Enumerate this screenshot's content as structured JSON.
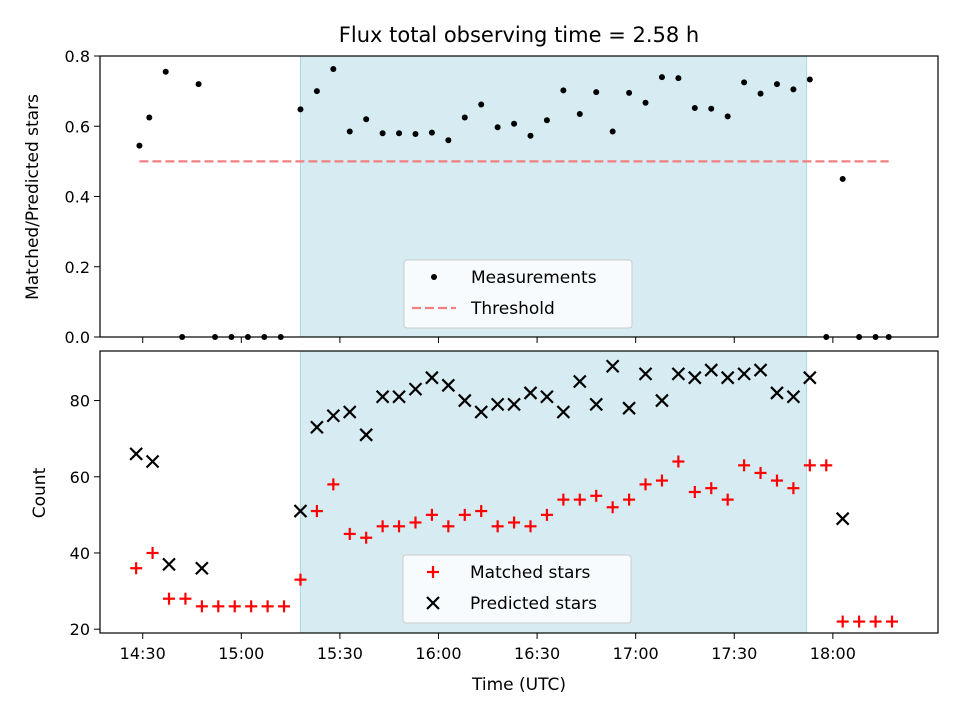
{
  "title": "Flux total observing time = 2.58 h",
  "colors": {
    "highlight": "#add8e6",
    "threshold": "#f08080",
    "measurements": "#000000",
    "matched": "#ff0000",
    "predicted": "#000000"
  },
  "chart_data": [
    {
      "type": "scatter",
      "title": "Flux total observing time = 2.58 h",
      "xlabel": "",
      "ylabel": "Matched/Predicted stars",
      "xlim": [
        "14:17",
        "18:32"
      ],
      "ylim": [
        0,
        0.8
      ],
      "y_ticks": [
        "0.0",
        "0.2",
        "0.4",
        "0.6",
        "0.8"
      ],
      "highlight_x": [
        "15:18",
        "17:52"
      ],
      "legend": {
        "position": "lower-center",
        "entries": [
          "Measurements",
          "Threshold"
        ]
      },
      "threshold": {
        "name": "Threshold",
        "value": 0.5,
        "x_range": [
          "14:29",
          "18:17"
        ]
      },
      "series": [
        {
          "name": "Measurements",
          "marker": "dot",
          "points": [
            [
              "14:29",
              0.545
            ],
            [
              "14:32",
              0.625
            ],
            [
              "14:37",
              0.755
            ],
            [
              "14:42",
              0.0
            ],
            [
              "14:47",
              0.72
            ],
            [
              "14:52",
              0.0
            ],
            [
              "14:57",
              0.0
            ],
            [
              "15:02",
              0.0
            ],
            [
              "15:07",
              0.0
            ],
            [
              "15:12",
              0.0
            ],
            [
              "15:18",
              0.648
            ],
            [
              "15:23",
              0.7
            ],
            [
              "15:28",
              0.763
            ],
            [
              "15:33",
              0.585
            ],
            [
              "15:38",
              0.62
            ],
            [
              "15:43",
              0.58
            ],
            [
              "15:48",
              0.58
            ],
            [
              "15:53",
              0.578
            ],
            [
              "15:58",
              0.582
            ],
            [
              "16:03",
              0.56
            ],
            [
              "16:08",
              0.625
            ],
            [
              "16:13",
              0.662
            ],
            [
              "16:18",
              0.597
            ],
            [
              "16:23",
              0.607
            ],
            [
              "16:28",
              0.573
            ],
            [
              "16:33",
              0.617
            ],
            [
              "16:38",
              0.702
            ],
            [
              "16:43",
              0.635
            ],
            [
              "16:48",
              0.697
            ],
            [
              "16:53",
              0.585
            ],
            [
              "16:58",
              0.695
            ],
            [
              "17:03",
              0.667
            ],
            [
              "17:08",
              0.74
            ],
            [
              "17:13",
              0.737
            ],
            [
              "17:18",
              0.652
            ],
            [
              "17:23",
              0.65
            ],
            [
              "17:28",
              0.628
            ],
            [
              "17:33",
              0.725
            ],
            [
              "17:38",
              0.693
            ],
            [
              "17:43",
              0.72
            ],
            [
              "17:48",
              0.705
            ],
            [
              "17:53",
              0.733
            ],
            [
              "17:58",
              0.0
            ],
            [
              "18:03",
              0.45
            ],
            [
              "18:08",
              0.0
            ],
            [
              "18:13",
              0.0
            ],
            [
              "18:17",
              0.0
            ]
          ]
        }
      ]
    },
    {
      "type": "scatter",
      "title": "",
      "xlabel": "Time (UTC)",
      "ylabel": "Count",
      "xlim": [
        "14:17",
        "18:32"
      ],
      "ylim": [
        19,
        93
      ],
      "y_ticks": [
        "20",
        "40",
        "60",
        "80"
      ],
      "x_ticks": [
        "14:30",
        "15:00",
        "15:30",
        "16:00",
        "16:30",
        "17:00",
        "17:30",
        "18:00"
      ],
      "highlight_x": [
        "15:18",
        "17:52"
      ],
      "legend": {
        "position": "lower-center",
        "entries": [
          "Matched stars",
          "Predicted stars"
        ]
      },
      "series": [
        {
          "name": "Matched stars",
          "marker": "plus",
          "points": [
            [
              "14:28",
              36
            ],
            [
              "14:33",
              40
            ],
            [
              "14:38",
              28
            ],
            [
              "14:43",
              28
            ],
            [
              "14:48",
              26
            ],
            [
              "14:53",
              26
            ],
            [
              "14:58",
              26
            ],
            [
              "15:03",
              26
            ],
            [
              "15:08",
              26
            ],
            [
              "15:13",
              26
            ],
            [
              "15:18",
              33
            ],
            [
              "15:23",
              51
            ],
            [
              "15:28",
              58
            ],
            [
              "15:33",
              45
            ],
            [
              "15:38",
              44
            ],
            [
              "15:43",
              47
            ],
            [
              "15:48",
              47
            ],
            [
              "15:53",
              48
            ],
            [
              "15:58",
              50
            ],
            [
              "16:03",
              47
            ],
            [
              "16:08",
              50
            ],
            [
              "16:13",
              51
            ],
            [
              "16:18",
              47
            ],
            [
              "16:23",
              48
            ],
            [
              "16:28",
              47
            ],
            [
              "16:33",
              50
            ],
            [
              "16:38",
              54
            ],
            [
              "16:43",
              54
            ],
            [
              "16:48",
              55
            ],
            [
              "16:53",
              52
            ],
            [
              "16:58",
              54
            ],
            [
              "17:03",
              58
            ],
            [
              "17:08",
              59
            ],
            [
              "17:13",
              64
            ],
            [
              "17:18",
              56
            ],
            [
              "17:23",
              57
            ],
            [
              "17:28",
              54
            ],
            [
              "17:33",
              63
            ],
            [
              "17:38",
              61
            ],
            [
              "17:43",
              59
            ],
            [
              "17:48",
              57
            ],
            [
              "17:53",
              63
            ],
            [
              "17:58",
              63
            ],
            [
              "18:03",
              22
            ],
            [
              "18:08",
              22
            ],
            [
              "18:13",
              22
            ],
            [
              "18:18",
              22
            ]
          ]
        },
        {
          "name": "Predicted stars",
          "marker": "x",
          "points": [
            [
              "14:28",
              66
            ],
            [
              "14:33",
              64
            ],
            [
              "14:38",
              37
            ],
            [
              "14:48",
              36
            ],
            [
              "15:18",
              51
            ],
            [
              "15:23",
              73
            ],
            [
              "15:28",
              76
            ],
            [
              "15:33",
              77
            ],
            [
              "15:38",
              71
            ],
            [
              "15:43",
              81
            ],
            [
              "15:48",
              81
            ],
            [
              "15:53",
              83
            ],
            [
              "15:58",
              86
            ],
            [
              "16:03",
              84
            ],
            [
              "16:08",
              80
            ],
            [
              "16:13",
              77
            ],
            [
              "16:18",
              79
            ],
            [
              "16:23",
              79
            ],
            [
              "16:28",
              82
            ],
            [
              "16:33",
              81
            ],
            [
              "16:38",
              77
            ],
            [
              "16:43",
              85
            ],
            [
              "16:48",
              79
            ],
            [
              "16:53",
              89
            ],
            [
              "16:58",
              78
            ],
            [
              "17:03",
              87
            ],
            [
              "17:08",
              80
            ],
            [
              "17:13",
              87
            ],
            [
              "17:18",
              86
            ],
            [
              "17:23",
              88
            ],
            [
              "17:28",
              86
            ],
            [
              "17:33",
              87
            ],
            [
              "17:38",
              88
            ],
            [
              "17:43",
              82
            ],
            [
              "17:48",
              81
            ],
            [
              "17:53",
              86
            ],
            [
              "18:03",
              49
            ]
          ]
        }
      ]
    }
  ]
}
